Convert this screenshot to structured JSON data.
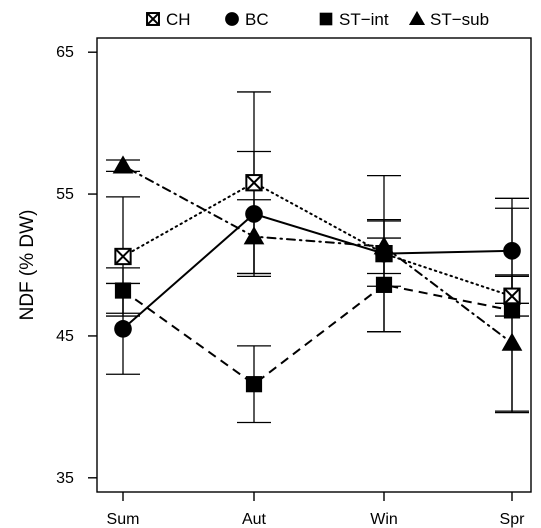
{
  "chart_data": {
    "type": "line",
    "title": "",
    "xlabel": "",
    "ylabel": "NDF (% DW)",
    "categories": [
      "Sum",
      "Aut",
      "Win",
      "Spr"
    ],
    "ylim": [
      34,
      66
    ],
    "yticks": [
      35,
      45,
      55,
      65
    ],
    "grid": false,
    "legend_position": "top",
    "series": [
      {
        "name": "CH",
        "marker": "crossed-square",
        "line_style": "dotted",
        "values": [
          50.6,
          55.8,
          50.8,
          47.8
        ],
        "error": [
          4.2,
          6.4,
          2.3,
          1.4
        ]
      },
      {
        "name": "BC",
        "marker": "circle",
        "line_style": "solid",
        "values": [
          45.5,
          53.6,
          50.8,
          51.0
        ],
        "error": [
          3.2,
          4.4,
          5.5,
          3.7
        ]
      },
      {
        "name": "ST−int",
        "marker": "square",
        "line_style": "dashed",
        "values": [
          48.2,
          41.6,
          48.6,
          46.8
        ],
        "error": [
          1.6,
          2.7,
          3.3,
          7.2
        ]
      },
      {
        "name": "ST−sub",
        "marker": "triangle",
        "line_style": "dotdash",
        "values": [
          57.0,
          52.0,
          51.3,
          44.5
        ],
        "error": [
          0.4,
          2.6,
          1.9,
          4.8
        ]
      }
    ]
  }
}
